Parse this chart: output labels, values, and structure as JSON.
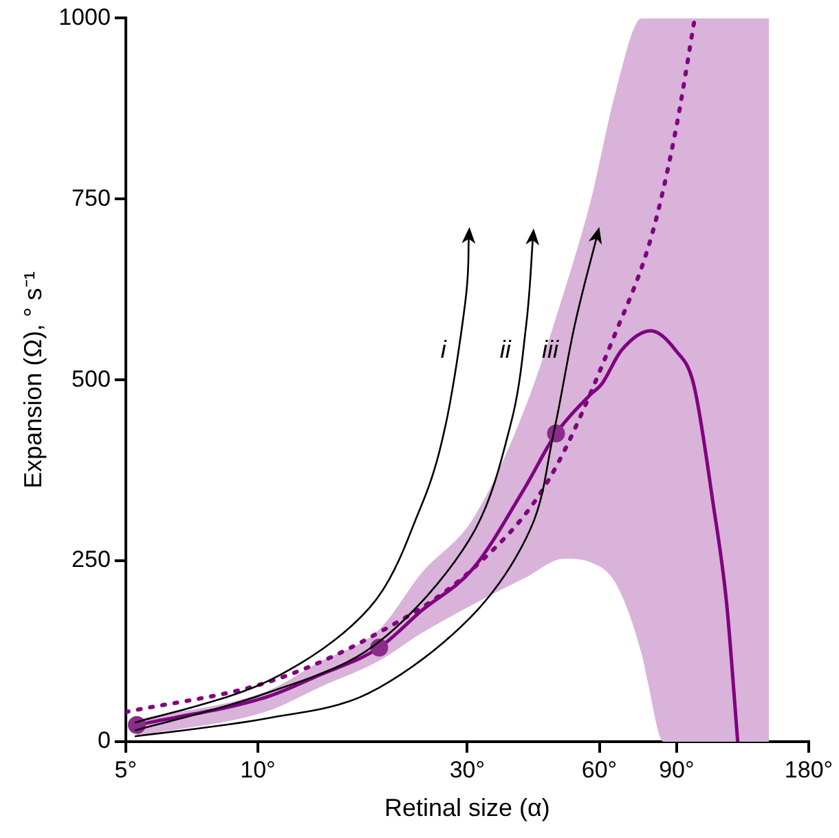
{
  "chart_data": {
    "type": "line",
    "xlabel": "Retinal size (α)",
    "ylabel": "Expansion (Ω), ° s⁻¹",
    "log": "x",
    "grid": false,
    "legend": false,
    "xlim": [
      5,
      180
    ],
    "ylim": [
      0,
      1000
    ],
    "xticks": [
      {
        "value": 5,
        "label": "5°"
      },
      {
        "value": 10,
        "label": "10°"
      },
      {
        "value": 30,
        "label": "30°"
      },
      {
        "value": 60,
        "label": "60°"
      },
      {
        "value": 90,
        "label": "90°"
      },
      {
        "value": 180,
        "label": "180°"
      }
    ],
    "yticks": [
      0,
      250,
      500,
      750,
      1000
    ],
    "series": [
      {
        "type": "area",
        "color": "#d9b3d9",
        "x": [
          5.3,
          10.5,
          13.8,
          18.9,
          23.6,
          31,
          40.5,
          50,
          57.3,
          65.5,
          75,
          77,
          84,
          100,
          146
        ],
        "values": [
          null,
          null,
          null,
          null,
          null,
          null,
          null,
          null,
          null,
          null,
          null,
          null,
          null,
          null,
          null
        ],
        "lower": [
          8,
          42,
          75,
          112,
          150,
          190,
          226,
          253,
          248,
          218,
          120,
          88,
          0,
          0,
          0
        ],
        "upper": [
          31,
          70,
          110,
          155,
          233,
          309,
          459,
          624,
          747,
          900,
          1000,
          1000,
          1000,
          1000,
          1000
        ]
      },
      {
        "type": "line",
        "color": "#800080",
        "line_style": "dotted",
        "x": [
          5,
          10.5,
          18,
          30.9,
          46,
          65,
          79,
          89.5,
          99
        ],
        "values": [
          41,
          82,
          144,
          239,
          362,
          562,
          700,
          844,
          1000
        ]
      },
      {
        "type": "line",
        "color": "#800080",
        "line_style": "solid",
        "x": [
          5.3,
          10.5,
          13.8,
          18.9,
          23.6,
          30.9,
          40.5,
          47.8,
          57.3,
          60.7,
          67.4,
          78.6,
          89.5,
          98.4,
          109,
          117,
          124
        ],
        "values": [
          23,
          62,
          92,
          130,
          181,
          239,
          350,
          426,
          480,
          494,
          541,
          568,
          541,
          494,
          329,
          191,
          0
        ]
      },
      {
        "type": "scatter",
        "color": "#8b2b8b",
        "marker": "circle",
        "x": [
          5.3,
          18.9,
          47.8
        ],
        "values": [
          23,
          130,
          426
        ]
      }
    ],
    "annotations": [
      "i",
      "ii",
      "iii"
    ]
  }
}
